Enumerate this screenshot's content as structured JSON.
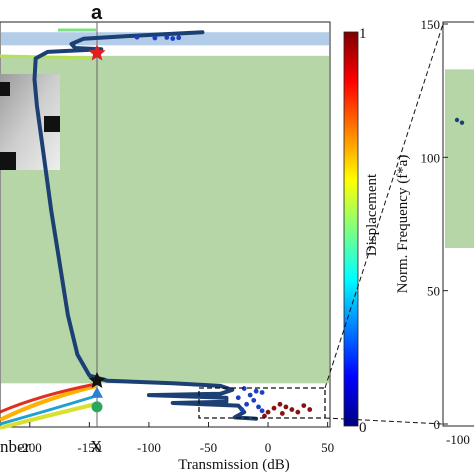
{
  "panel_letter": "a",
  "chart_data": [
    {
      "type": "line",
      "title": "",
      "xlabel": "Transmission (dB)",
      "ylabel": "",
      "x_ticks": [
        -200,
        -150,
        -100,
        -50,
        0,
        50
      ],
      "x_tick_labels": [
        "-200",
        "-150",
        "-100",
        "-50",
        "0",
        "50"
      ],
      "xlim": [
        -225,
        52
      ],
      "ylim": [
        0,
        150
      ],
      "band_axis_labels": [
        "nber",
        "X"
      ],
      "band_gaps": [
        {
          "name": "",
          "y_start": 14,
          "y_end": 139
        },
        {
          "name": "",
          "y_start": 143,
          "y_end": 148
        }
      ],
      "transmission_curve": {
        "name": "",
        "color": "#1c3f74",
        "points": [
          [
            -55,
            148
          ],
          [
            -120,
            146.5
          ],
          [
            -155,
            145.5
          ],
          [
            -165,
            143.5
          ],
          [
            -162,
            142
          ],
          [
            -140,
            141.5
          ],
          [
            -185,
            140.5
          ],
          [
            -195,
            138
          ],
          [
            -196,
            130
          ],
          [
            -194,
            120
          ],
          [
            -188,
            100
          ],
          [
            -182,
            80
          ],
          [
            -175,
            60
          ],
          [
            -168,
            40
          ],
          [
            -160,
            25
          ],
          [
            -150,
            17
          ],
          [
            -135,
            15
          ],
          [
            -80,
            14
          ],
          [
            -40,
            13
          ],
          [
            -30,
            11.5
          ],
          [
            -40,
            10
          ],
          [
            -100,
            9.5
          ],
          [
            -35,
            8.5
          ],
          [
            -35,
            7
          ],
          [
            -80,
            6.5
          ],
          [
            -25,
            5.5
          ],
          [
            -20,
            3
          ],
          [
            -28,
            1
          ],
          [
            -10,
            0.5
          ]
        ]
      },
      "displacement_points": [
        [
          -85,
          146
        ],
        [
          -95,
          145.8
        ],
        [
          -80,
          145.6
        ],
        [
          -110,
          146.1
        ],
        [
          -75,
          145.9
        ],
        [
          -20,
          12
        ],
        [
          -10,
          11
        ],
        [
          -5,
          10.5
        ],
        [
          -15,
          9.5
        ],
        [
          -25,
          8.5
        ],
        [
          -12,
          7.5
        ],
        [
          -18,
          6
        ],
        [
          -8,
          5
        ],
        [
          -22,
          4
        ],
        [
          -5,
          3.5
        ],
        [
          0,
          3
        ],
        [
          5,
          4.5
        ],
        [
          10,
          6
        ],
        [
          15,
          5
        ],
        [
          20,
          4
        ],
        [
          25,
          3
        ],
        [
          30,
          5.5
        ],
        [
          35,
          4
        ],
        [
          12,
          2.5
        ],
        [
          -3,
          1.5
        ]
      ],
      "markers": [
        {
          "shape": "star",
          "color": "#e02020",
          "y": 140
        },
        {
          "shape": "star",
          "color": "#111111",
          "y": 15
        },
        {
          "shape": "triangle",
          "color": "#2f7fd0",
          "y": 10
        },
        {
          "shape": "circle",
          "color": "#2aa860",
          "y": 5
        }
      ]
    },
    {
      "type": "colorbar",
      "label": "Displacement",
      "ticks": [
        0,
        1
      ],
      "tick_labels": [
        "0",
        "1"
      ],
      "colormap": [
        "#00007f",
        "#0000ff",
        "#007fff",
        "#00ffff",
        "#7fff7f",
        "#ffff00",
        "#ff7f00",
        "#ff0000",
        "#7f0000"
      ]
    },
    {
      "type": "scatter",
      "title": "",
      "xlabel": "-100",
      "ylabel": "Norm. Frequency (f*a)",
      "y_ticks": [
        0,
        50,
        100,
        150
      ],
      "y_tick_labels": [
        "0",
        "50",
        "100",
        "150"
      ],
      "ylim": [
        0,
        150
      ],
      "band_gaps": [
        {
          "name": "",
          "y_start": 66,
          "y_end": 133
        }
      ],
      "points": [
        {
          "x": -100,
          "y": 114
        },
        {
          "x": -95,
          "y": 113
        }
      ]
    }
  ]
}
